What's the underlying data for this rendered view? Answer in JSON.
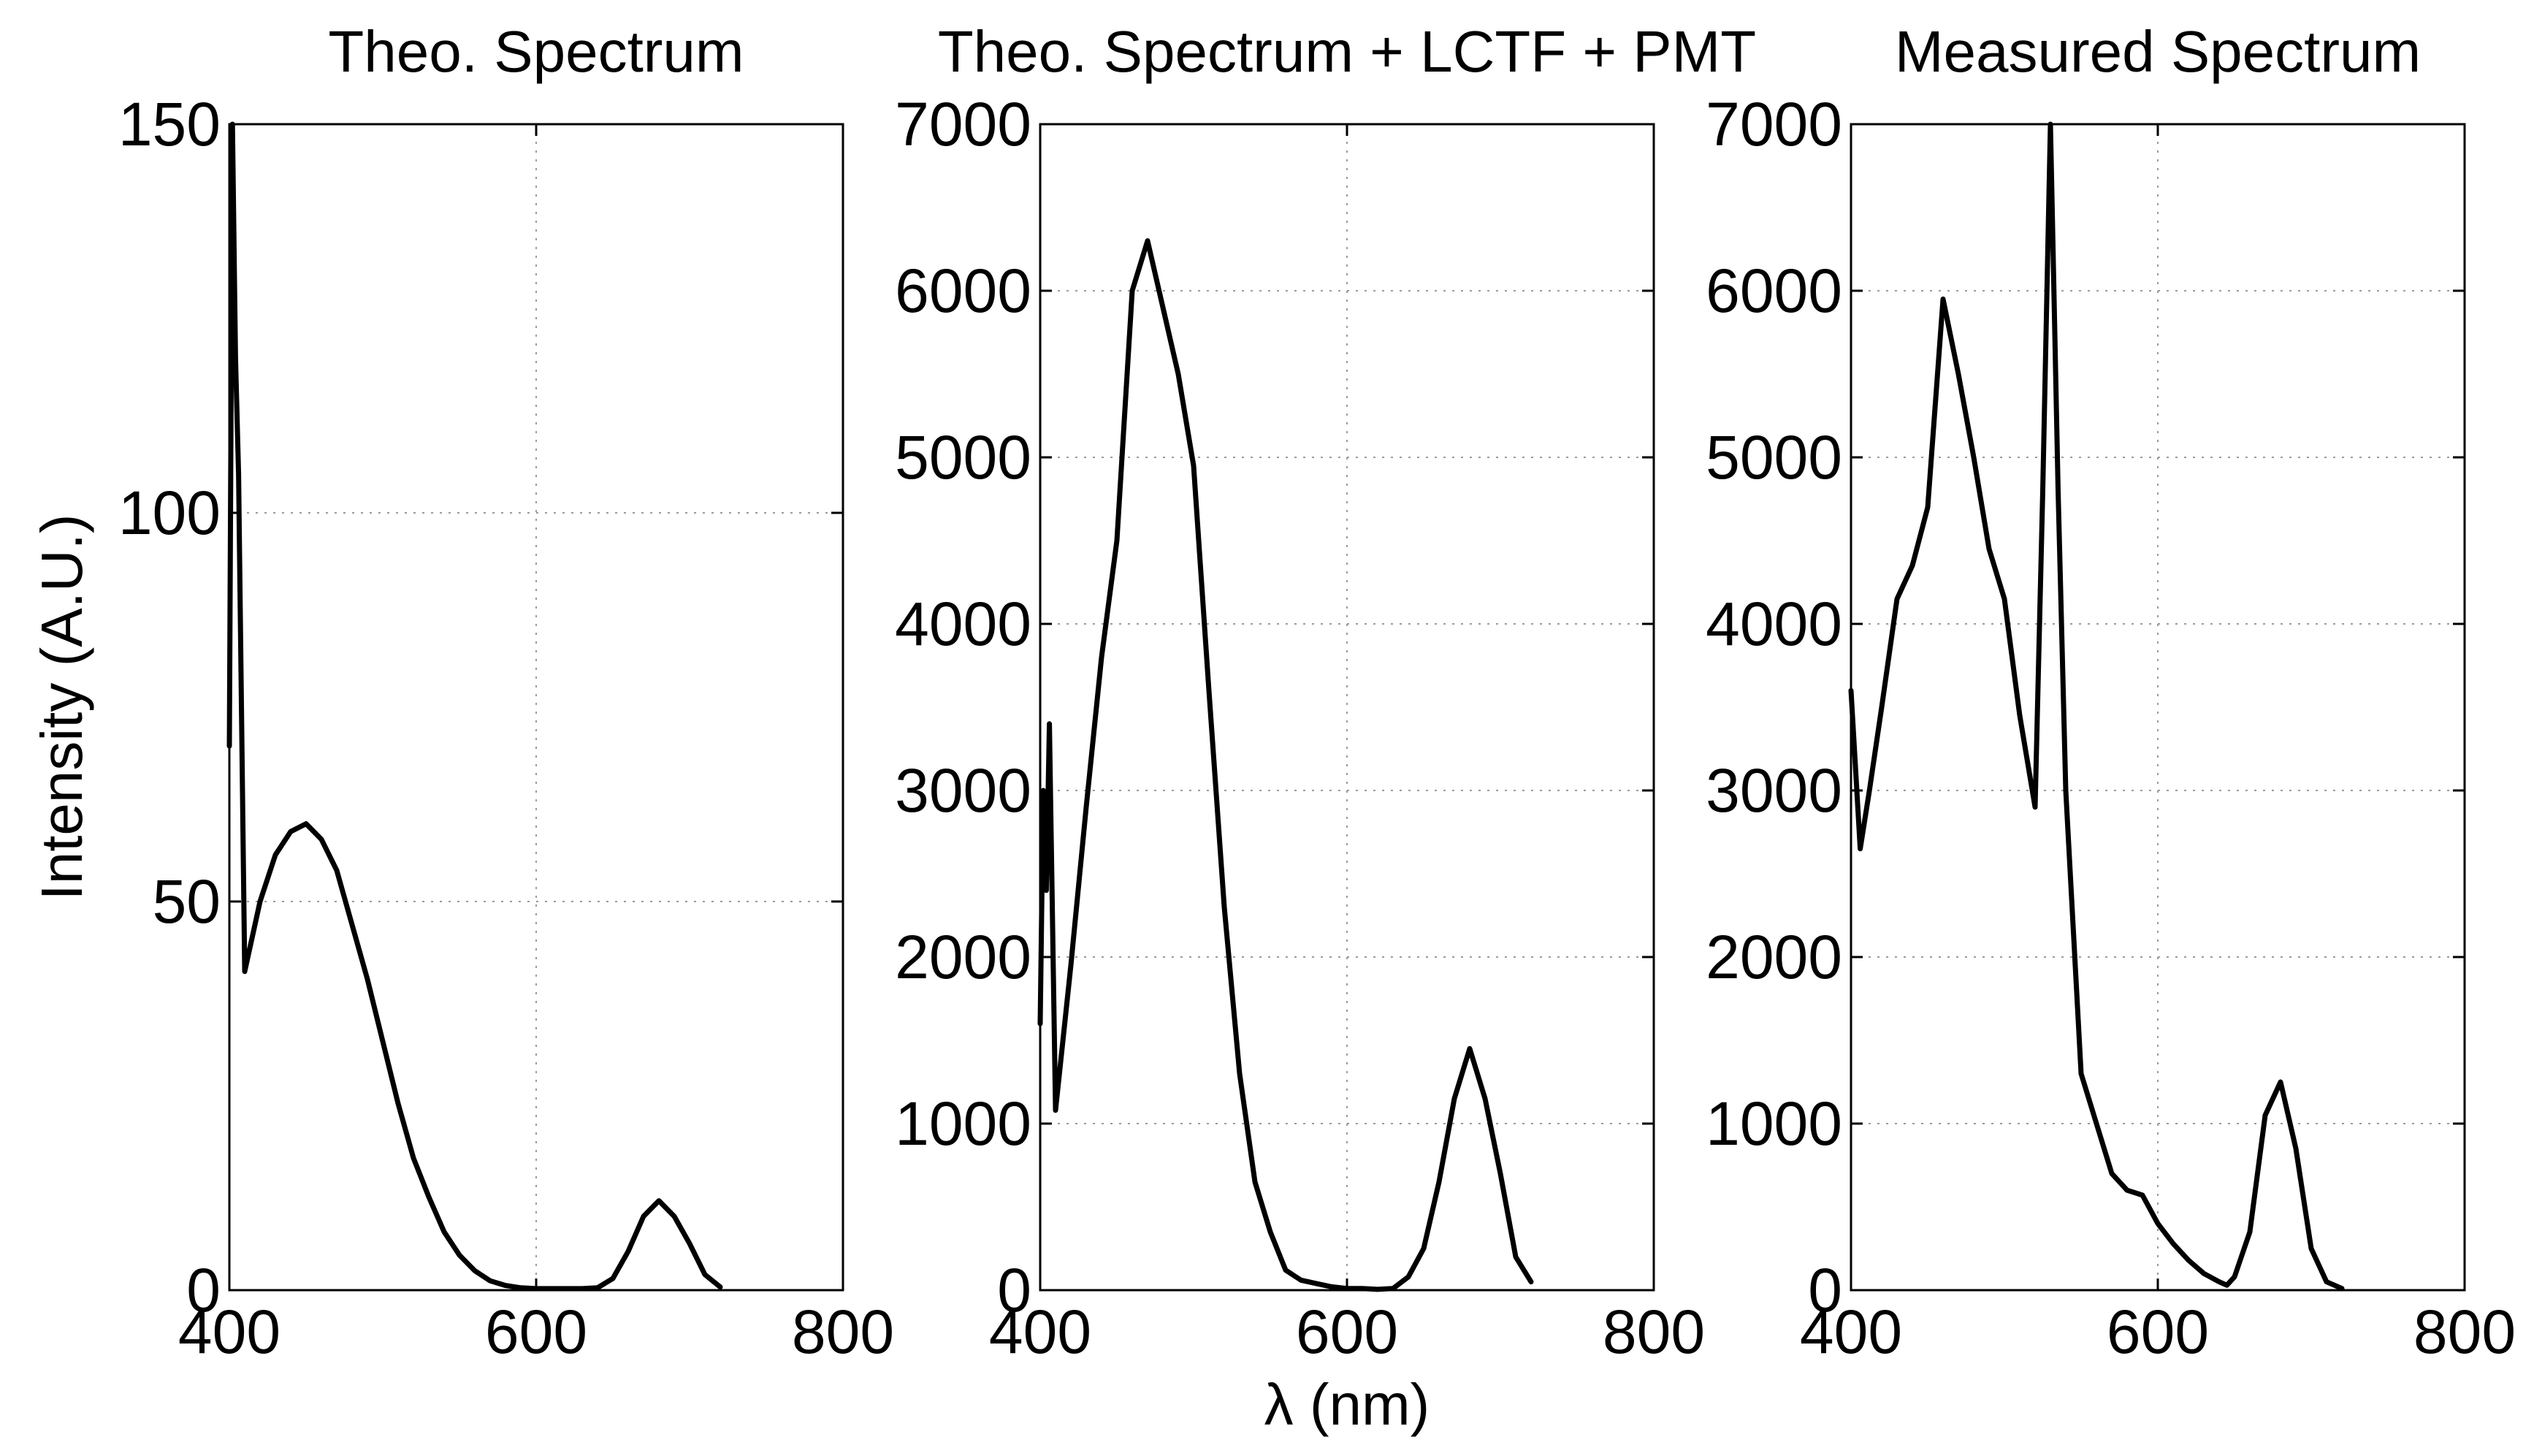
{
  "chart_data": [
    {
      "type": "line",
      "title": "Theo. Spectrum",
      "ylabel": "Intensity (A.U.)",
      "xlabel": "",
      "xlim": [
        400,
        800
      ],
      "ylim": [
        0,
        150
      ],
      "xticks": [
        400,
        600,
        800
      ],
      "yticks": [
        0,
        50,
        100,
        150
      ],
      "xtick_labels": [
        "400",
        "600",
        "800"
      ],
      "ytick_labels": [
        "0",
        "50",
        "100",
        "150"
      ],
      "grid": true,
      "x": [
        400,
        402,
        404,
        406,
        410,
        420,
        430,
        440,
        450,
        460,
        470,
        480,
        490,
        500,
        510,
        520,
        530,
        540,
        550,
        560,
        570,
        580,
        590,
        600,
        610,
        620,
        630,
        640,
        650,
        660,
        670,
        680,
        690,
        700,
        710,
        720
      ],
      "values": [
        70,
        150,
        120,
        105,
        41,
        50,
        56,
        59,
        60,
        58,
        54,
        47,
        40,
        32,
        24,
        17,
        12,
        7.5,
        4.5,
        2.5,
        1.2,
        0.6,
        0.3,
        0.2,
        0.2,
        0.2,
        0.2,
        0.3,
        1.5,
        5,
        9.5,
        11.5,
        9.5,
        6,
        2,
        0.4
      ]
    },
    {
      "type": "line",
      "title": "Theo. Spectrum + LCTF + PMT",
      "ylabel": "",
      "xlabel": "λ (nm)",
      "xlim": [
        400,
        800
      ],
      "ylim": [
        0,
        7000
      ],
      "xticks": [
        400,
        600,
        800
      ],
      "yticks": [
        0,
        1000,
        2000,
        3000,
        4000,
        5000,
        6000,
        7000
      ],
      "xtick_labels": [
        "400",
        "600",
        "800"
      ],
      "ytick_labels": [
        "0",
        "1000",
        "2000",
        "3000",
        "4000",
        "5000",
        "6000",
        "7000"
      ],
      "grid": true,
      "x": [
        400,
        402,
        404,
        406,
        410,
        420,
        430,
        440,
        450,
        460,
        470,
        480,
        490,
        500,
        510,
        520,
        530,
        540,
        550,
        560,
        570,
        580,
        590,
        600,
        610,
        620,
        630,
        640,
        650,
        660,
        670,
        680,
        690,
        700,
        710,
        720
      ],
      "values": [
        1600,
        3000,
        2400,
        3400,
        1080,
        1950,
        2900,
        3800,
        4500,
        6000,
        6300,
        5900,
        5500,
        4950,
        3600,
        2300,
        1300,
        650,
        350,
        120,
        60,
        40,
        20,
        10,
        10,
        5,
        10,
        80,
        250,
        650,
        1150,
        1450,
        1150,
        700,
        200,
        50
      ]
    },
    {
      "type": "line",
      "title": "Measured Spectrum",
      "ylabel": "",
      "xlabel": "",
      "xlim": [
        400,
        800
      ],
      "ylim": [
        0,
        7000
      ],
      "xticks": [
        400,
        600,
        800
      ],
      "yticks": [
        0,
        1000,
        2000,
        3000,
        4000,
        5000,
        6000,
        7000
      ],
      "xtick_labels": [
        "400",
        "600",
        "800"
      ],
      "ytick_labels": [
        "0",
        "1000",
        "2000",
        "3000",
        "4000",
        "5000",
        "6000",
        "7000"
      ],
      "grid": true,
      "x": [
        400,
        406,
        412,
        420,
        430,
        440,
        450,
        460,
        470,
        480,
        490,
        500,
        510,
        520,
        525,
        530,
        535,
        540,
        550,
        560,
        570,
        580,
        590,
        600,
        610,
        620,
        630,
        640,
        645,
        650,
        660,
        670,
        680,
        690,
        700,
        710,
        720
      ],
      "values": [
        3600,
        2650,
        3000,
        3500,
        4150,
        4350,
        4700,
        5950,
        5500,
        5000,
        4450,
        4150,
        3450,
        2900,
        4800,
        7000,
        4800,
        3000,
        1300,
        1000,
        700,
        600,
        570,
        400,
        280,
        180,
        100,
        50,
        30,
        80,
        350,
        1050,
        1250,
        850,
        250,
        50,
        10
      ]
    }
  ]
}
